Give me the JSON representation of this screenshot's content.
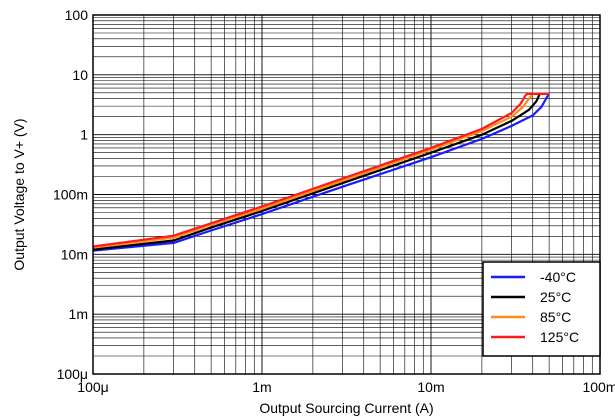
{
  "chart_data": {
    "type": "line",
    "title": "",
    "xlabel": "Output Sourcing Current (A)",
    "ylabel": "Output Voltage to V+ (V)",
    "xscale": "log",
    "yscale": "log",
    "xlim": [
      0.0001,
      0.1
    ],
    "ylim": [
      0.0001,
      100
    ],
    "grid": true,
    "legend_position": "bottom-right",
    "x_ticks": [
      {
        "value": 0.0001,
        "label": "100μ"
      },
      {
        "value": 0.001,
        "label": "1m"
      },
      {
        "value": 0.01,
        "label": "10m"
      },
      {
        "value": 0.1,
        "label": "100m"
      }
    ],
    "y_ticks": [
      {
        "value": 0.0001,
        "label": "100μ"
      },
      {
        "value": 0.001,
        "label": "1m"
      },
      {
        "value": 0.01,
        "label": "10m"
      },
      {
        "value": 0.1,
        "label": "100m"
      },
      {
        "value": 1,
        "label": "1"
      },
      {
        "value": 10,
        "label": "10"
      },
      {
        "value": 100,
        "label": "100"
      }
    ],
    "series": [
      {
        "name": "-40°C",
        "color": "#1a1aff",
        "points": [
          [
            0.0001,
            0.0115
          ],
          [
            0.0003,
            0.0155
          ],
          [
            0.0005,
            0.025
          ],
          [
            0.001,
            0.047
          ],
          [
            0.003,
            0.135
          ],
          [
            0.01,
            0.42
          ],
          [
            0.02,
            0.85
          ],
          [
            0.03,
            1.4
          ],
          [
            0.04,
            2.1
          ],
          [
            0.045,
            2.9
          ],
          [
            0.048,
            4.0
          ],
          [
            0.05,
            4.8
          ]
        ]
      },
      {
        "name": "25°C",
        "color": "#000000",
        "points": [
          [
            0.0001,
            0.012
          ],
          [
            0.0003,
            0.017
          ],
          [
            0.0005,
            0.028
          ],
          [
            0.001,
            0.053
          ],
          [
            0.003,
            0.155
          ],
          [
            0.01,
            0.5
          ],
          [
            0.02,
            1.0
          ],
          [
            0.03,
            1.7
          ],
          [
            0.038,
            2.6
          ],
          [
            0.042,
            3.6
          ],
          [
            0.044,
            4.8
          ],
          [
            0.05,
            4.8
          ]
        ]
      },
      {
        "name": "85°C",
        "color": "#ff8c1a",
        "points": [
          [
            0.0001,
            0.013
          ],
          [
            0.0003,
            0.019
          ],
          [
            0.0005,
            0.031
          ],
          [
            0.001,
            0.058
          ],
          [
            0.003,
            0.17
          ],
          [
            0.01,
            0.56
          ],
          [
            0.02,
            1.15
          ],
          [
            0.03,
            2.0
          ],
          [
            0.035,
            2.9
          ],
          [
            0.038,
            4.0
          ],
          [
            0.04,
            4.8
          ],
          [
            0.05,
            4.8
          ]
        ]
      },
      {
        "name": "125°C",
        "color": "#ff1a1a",
        "points": [
          [
            0.0001,
            0.0135
          ],
          [
            0.0003,
            0.0205
          ],
          [
            0.0005,
            0.033
          ],
          [
            0.001,
            0.063
          ],
          [
            0.003,
            0.185
          ],
          [
            0.01,
            0.6
          ],
          [
            0.02,
            1.25
          ],
          [
            0.03,
            2.3
          ],
          [
            0.034,
            3.3
          ],
          [
            0.036,
            4.4
          ],
          [
            0.037,
            4.8
          ],
          [
            0.05,
            4.8
          ]
        ]
      }
    ]
  }
}
